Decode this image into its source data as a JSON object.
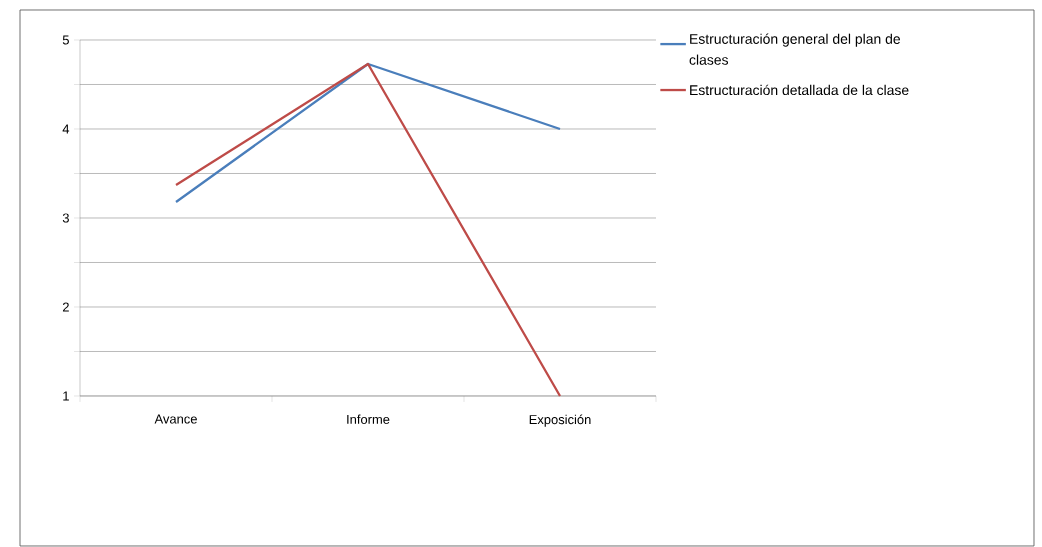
{
  "chart_data": {
    "type": "line",
    "categories": [
      "Avance",
      "Informe",
      "Exposición"
    ],
    "series": [
      {
        "name": "Estructuración general del plan de clases",
        "color": "#4a7ebb",
        "values": [
          3.18,
          4.73,
          4.0
        ]
      },
      {
        "name": "Estructuración detallada de la clase",
        "color": "#be4b48",
        "values": [
          3.37,
          4.73,
          1.0
        ]
      }
    ],
    "ylim": [
      1,
      5
    ],
    "yticks": [
      1,
      {
        "value": 1.5,
        "label": null
      },
      2,
      {
        "value": 2.5,
        "label": null
      },
      3,
      {
        "value": 3.5,
        "label": null
      },
      4,
      {
        "value": 4.5,
        "label": null
      },
      5
    ],
    "grid": "y",
    "legend": "right",
    "marker": "none",
    "line_style": "solid"
  }
}
